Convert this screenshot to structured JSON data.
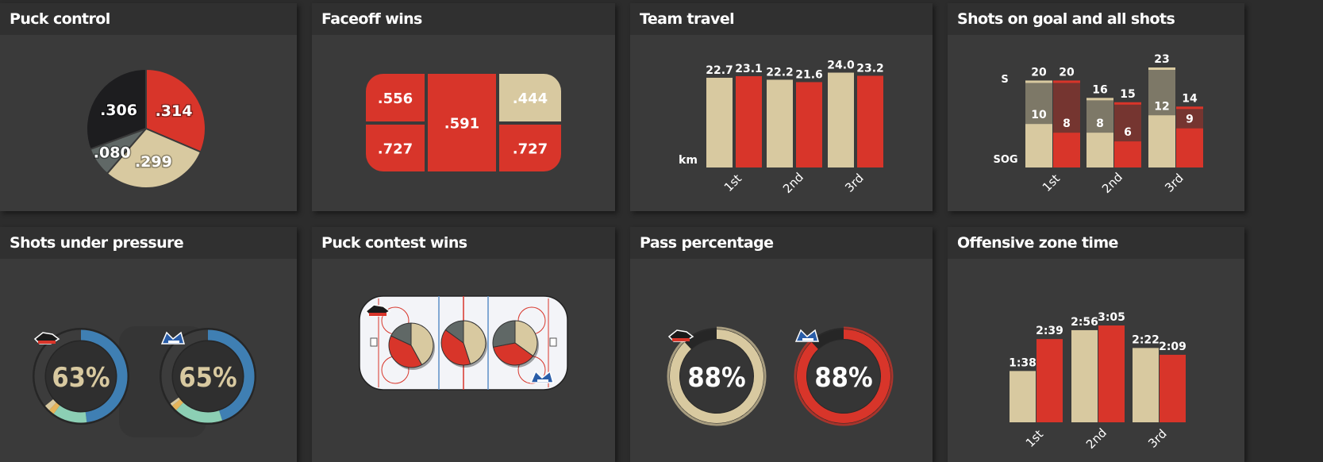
{
  "colors": {
    "cream": "#d8c9a0",
    "red": "#d8352a",
    "dark": "#1d1d1f",
    "grey": "#606866",
    "blue": "#3f7fb3",
    "teal": "#8ccfb4",
    "yellow": "#e5b45a",
    "rink_line": "#d8352a"
  },
  "icons": {
    "team_a_logo": "panther-logo-icon",
    "team_b_logo": "wild-wings-logo-icon"
  },
  "chart_data": [
    {
      "id": "puck_control",
      "type": "pie",
      "title": "Puck control",
      "slices": [
        {
          "label": ".314",
          "value": 0.314,
          "color": "red"
        },
        {
          "label": ".299",
          "value": 0.299,
          "color": "cream"
        },
        {
          "label": ".080",
          "value": 0.08,
          "color": "grey"
        },
        {
          "label": ".306",
          "value": 0.306,
          "color": "dark"
        }
      ]
    },
    {
      "id": "faceoff_wins",
      "type": "table",
      "title": "Faceoff wins",
      "cells": [
        {
          "value": ".556",
          "color": "red"
        },
        {
          "value": ".727",
          "color": "red"
        },
        {
          "value": ".591",
          "color": "red"
        },
        {
          "value": ".444",
          "color": "cream"
        },
        {
          "value": ".727",
          "color": "red"
        }
      ]
    },
    {
      "id": "team_travel",
      "type": "bar",
      "title": "Team travel",
      "ylabel": "km",
      "categories": [
        "1st",
        "2nd",
        "3rd"
      ],
      "series": [
        {
          "color": "cream",
          "values": [
            22.7,
            22.2,
            24.0
          ]
        },
        {
          "color": "red",
          "values": [
            23.1,
            21.6,
            23.2
          ]
        }
      ],
      "value_labels": [
        [
          "22.7",
          "22.2",
          "24.0"
        ],
        [
          "23.1",
          "21.6",
          "23.2"
        ]
      ],
      "ylim": [
        0,
        24.5
      ]
    },
    {
      "id": "shots",
      "type": "bar",
      "title": "Shots on goal and all shots",
      "axis_labels": {
        "s": "S",
        "sog": "SOG"
      },
      "categories": [
        "1st",
        "2nd",
        "3rd"
      ],
      "series": [
        {
          "color": "cream",
          "shots": [
            20,
            16,
            23
          ],
          "sog": [
            10,
            8,
            12
          ]
        },
        {
          "color": "red",
          "shots": [
            20,
            15,
            14
          ],
          "sog": [
            8,
            6,
            9
          ]
        }
      ],
      "ylim": [
        0,
        23
      ]
    },
    {
      "id": "shots_pressure",
      "type": "pie",
      "title": "Shots under pressure",
      "rings": [
        {
          "value_label": "63%",
          "value": 0.63,
          "segments": [
            {
              "color": "blue",
              "frac": 0.48
            },
            {
              "color": "teal",
              "frac": 0.12
            },
            {
              "color": "yellow",
              "frac": 0.02
            },
            {
              "color": "cream",
              "frac": 0.02
            }
          ]
        },
        {
          "value_label": "65%",
          "value": 0.65,
          "segments": [
            {
              "color": "blue",
              "frac": 0.45
            },
            {
              "color": "teal",
              "frac": 0.17
            },
            {
              "color": "yellow",
              "frac": 0.02
            },
            {
              "color": "cream",
              "frac": 0.01
            }
          ]
        }
      ]
    },
    {
      "id": "puck_contest",
      "type": "pie",
      "title": "Puck contest wins",
      "zones": [
        [
          {
            "color": "cream",
            "value": 0.42
          },
          {
            "color": "red",
            "value": 0.4
          },
          {
            "color": "grey",
            "value": 0.18
          }
        ],
        [
          {
            "color": "cream",
            "value": 0.45
          },
          {
            "color": "red",
            "value": 0.4
          },
          {
            "color": "grey",
            "value": 0.15
          }
        ],
        [
          {
            "color": "cream",
            "value": 0.35
          },
          {
            "color": "red",
            "value": 0.37
          },
          {
            "color": "grey",
            "value": 0.28
          }
        ]
      ]
    },
    {
      "id": "pass_pct",
      "type": "pie",
      "title": "Pass percentage",
      "rings": [
        {
          "value_label": "88%",
          "value": 0.88,
          "color": "cream"
        },
        {
          "value_label": "88%",
          "value": 0.88,
          "color": "red"
        }
      ]
    },
    {
      "id": "oz_time",
      "type": "bar",
      "title": "Offensive zone time",
      "categories": [
        "1st",
        "2nd",
        "3rd"
      ],
      "series": [
        {
          "color": "cream",
          "values": [
            98,
            176,
            142
          ]
        },
        {
          "color": "red",
          "values": [
            159,
            185,
            129
          ]
        }
      ],
      "value_labels": [
        [
          "1:38",
          "2:56",
          "2:22"
        ],
        [
          "2:39",
          "3:05",
          "2:09"
        ]
      ],
      "ylim": [
        0,
        185
      ]
    }
  ]
}
